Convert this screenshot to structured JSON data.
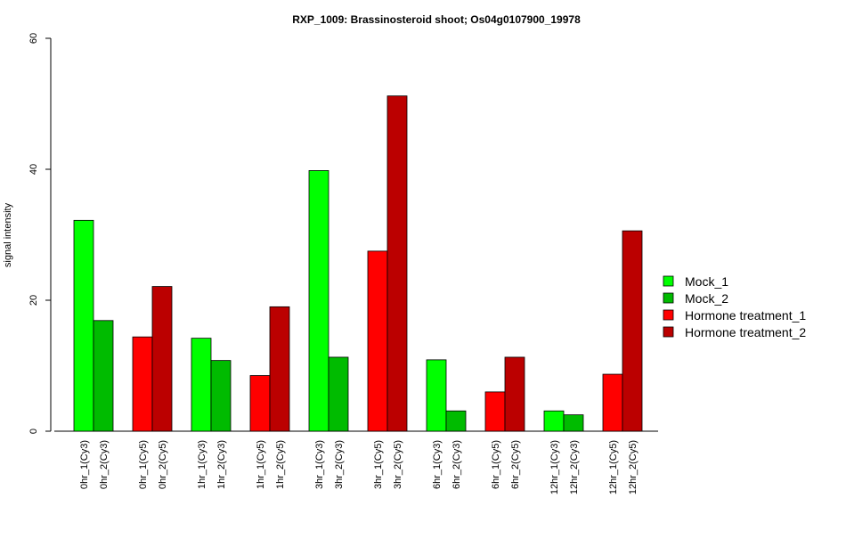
{
  "chart_data": {
    "type": "bar",
    "title": "RXP_1009: Brassinosteroid shoot; Os04g0107900_19978",
    "xlabel": "",
    "ylabel": "signal intensity",
    "ylim": [
      0,
      60
    ],
    "yticks": [
      "0",
      "20",
      "40",
      "60"
    ],
    "legend_position": "right",
    "legend": [
      {
        "label": "Mock_1",
        "color": "#00ff00"
      },
      {
        "label": "Mock_2",
        "color": "#00bb00"
      },
      {
        "label": "Hormone treatment_1",
        "color": "#ff0000"
      },
      {
        "label": "Hormone treatment_2",
        "color": "#bb0000"
      }
    ],
    "groups": [
      {
        "bars": [
          {
            "label": "0hr_1(Cy3)",
            "value": 32.2,
            "series": 0
          },
          {
            "label": "0hr_2(Cy3)",
            "value": 16.9,
            "series": 1
          }
        ]
      },
      {
        "bars": [
          {
            "label": "0hr_1(Cy5)",
            "value": 14.4,
            "series": 2
          },
          {
            "label": "0hr_2(Cy5)",
            "value": 22.1,
            "series": 3
          }
        ]
      },
      {
        "bars": [
          {
            "label": "1hr_1(Cy3)",
            "value": 14.2,
            "series": 0
          },
          {
            "label": "1hr_2(Cy3)",
            "value": 10.8,
            "series": 1
          }
        ]
      },
      {
        "bars": [
          {
            "label": "1hr_1(Cy5)",
            "value": 8.5,
            "series": 2
          },
          {
            "label": "1hr_2(Cy5)",
            "value": 19.0,
            "series": 3
          }
        ]
      },
      {
        "bars": [
          {
            "label": "3hr_1(Cy3)",
            "value": 39.8,
            "series": 0
          },
          {
            "label": "3hr_2(Cy3)",
            "value": 11.3,
            "series": 1
          }
        ]
      },
      {
        "bars": [
          {
            "label": "3hr_1(Cy5)",
            "value": 27.5,
            "series": 2
          },
          {
            "label": "3hr_2(Cy5)",
            "value": 51.2,
            "series": 3
          }
        ]
      },
      {
        "bars": [
          {
            "label": "6hr_1(Cy3)",
            "value": 10.9,
            "series": 0
          },
          {
            "label": "6hr_2(Cy3)",
            "value": 3.1,
            "series": 1
          }
        ]
      },
      {
        "bars": [
          {
            "label": "6hr_1(Cy5)",
            "value": 6.0,
            "series": 2
          },
          {
            "label": "6hr_2(Cy5)",
            "value": 11.3,
            "series": 3
          }
        ]
      },
      {
        "bars": [
          {
            "label": "12hr_1(Cy3)",
            "value": 3.1,
            "series": 0
          },
          {
            "label": "12hr_2(Cy3)",
            "value": 2.5,
            "series": 1
          }
        ]
      },
      {
        "bars": [
          {
            "label": "12hr_1(Cy5)",
            "value": 8.7,
            "series": 2
          },
          {
            "label": "12hr_2(Cy5)",
            "value": 30.6,
            "series": 3
          }
        ]
      }
    ]
  }
}
